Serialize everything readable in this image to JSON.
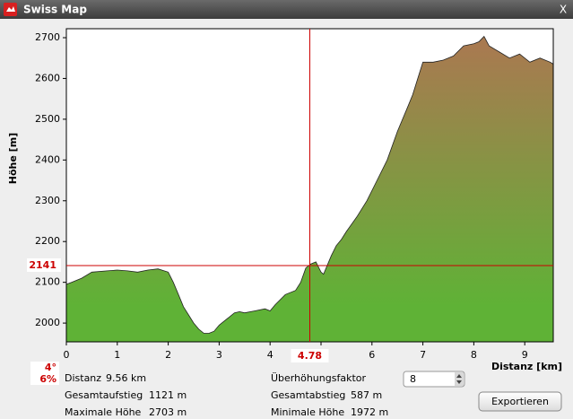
{
  "window": {
    "title": "Swiss Map",
    "close": "X"
  },
  "chart_data": {
    "type": "area",
    "xlabel": "Distanz [km]",
    "ylabel": "Höhe [m]",
    "x": [
      0,
      0.1,
      0.3,
      0.5,
      0.8,
      1.0,
      1.2,
      1.4,
      1.6,
      1.8,
      2.0,
      2.1,
      2.2,
      2.3,
      2.4,
      2.5,
      2.6,
      2.7,
      2.8,
      2.9,
      3.0,
      3.1,
      3.2,
      3.3,
      3.4,
      3.5,
      3.7,
      3.9,
      4.0,
      4.1,
      4.3,
      4.5,
      4.6,
      4.7,
      4.8,
      4.9,
      5.0,
      5.05,
      5.1,
      5.2,
      5.3,
      5.4,
      5.5,
      5.7,
      5.9,
      6.1,
      6.3,
      6.5,
      6.7,
      6.8,
      6.9,
      7.0,
      7.2,
      7.4,
      7.6,
      7.8,
      8.0,
      8.1,
      8.2,
      8.3,
      8.5,
      8.7,
      8.9,
      9.1,
      9.3,
      9.5,
      9.56
    ],
    "values": [
      2095,
      2100,
      2110,
      2125,
      2128,
      2130,
      2128,
      2125,
      2130,
      2133,
      2125,
      2100,
      2070,
      2040,
      2020,
      2000,
      1985,
      1975,
      1975,
      1980,
      1995,
      2005,
      2015,
      2025,
      2028,
      2025,
      2030,
      2035,
      2030,
      2045,
      2070,
      2080,
      2100,
      2135,
      2145,
      2150,
      2125,
      2120,
      2135,
      2165,
      2190,
      2205,
      2225,
      2260,
      2300,
      2350,
      2400,
      2470,
      2530,
      2560,
      2600,
      2640,
      2640,
      2645,
      2655,
      2680,
      2685,
      2690,
      2703,
      2680,
      2665,
      2650,
      2660,
      2640,
      2650,
      2640,
      2635
    ],
    "xlim": [
      0,
      9.56
    ],
    "ylim": [
      1954,
      2722
    ],
    "xticks": [
      0,
      1,
      2,
      3,
      4,
      5,
      6,
      7,
      8,
      9
    ],
    "yticks": [
      2000,
      2100,
      2200,
      2300,
      2400,
      2500,
      2600,
      2700
    ],
    "colors": [
      "#a87a50",
      "#5fb236"
    ],
    "cursor_color": "#cc0000",
    "cursor": {
      "x": 4.78,
      "y": 2141,
      "slope_deg": "4°",
      "slope_pct": "6%"
    }
  },
  "stats": {
    "distance": {
      "label": "Distanz",
      "value": "9.56 km"
    },
    "ascent": {
      "label": "Gesamtaufstieg",
      "value": "1121 m"
    },
    "max": {
      "label": "Maximale Höhe",
      "value": "2703 m"
    },
    "factor": {
      "label": "Überhöhungsfaktor",
      "value": "8"
    },
    "descent": {
      "label": "Gesamtabstieg",
      "value": "587 m"
    },
    "min": {
      "label": "Minimale Höhe",
      "value": "1972 m"
    }
  },
  "export_button": "Exportieren"
}
